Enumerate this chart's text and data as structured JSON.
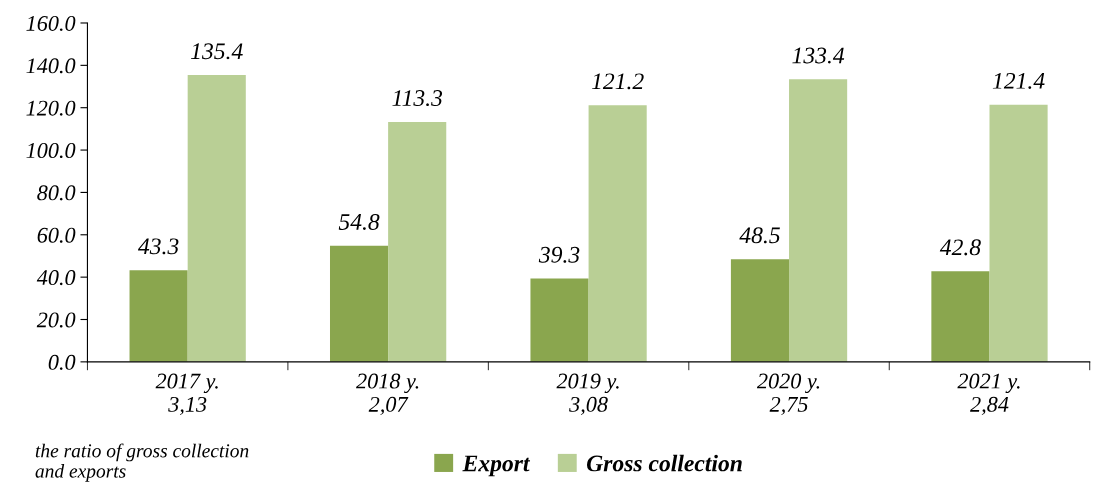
{
  "chart_data": {
    "type": "bar",
    "categories": [
      "2017 y.\n3,13",
      "2018 y.\n2,07",
      "2019 y.\n3,08",
      "2020 y.\n2,75",
      "2021 y.\n2,84"
    ],
    "series": [
      {
        "name": "Export",
        "color": "#8aa64e",
        "values": [
          43.3,
          54.8,
          39.3,
          48.5,
          42.8
        ]
      },
      {
        "name": "Gross collection",
        "color": "#b9cf95",
        "values": [
          135.4,
          113.3,
          121.2,
          133.4,
          121.4
        ]
      }
    ],
    "ylim": [
      0,
      160
    ],
    "yticks": [
      {
        "value": 0,
        "label": "0.0"
      },
      {
        "value": 20,
        "label": "20.0"
      },
      {
        "value": 40,
        "label": "40.0"
      },
      {
        "value": 60,
        "label": "60.0"
      },
      {
        "value": 80,
        "label": "80.0"
      },
      {
        "value": 100,
        "label": "100.0"
      },
      {
        "value": 120,
        "label": "120.0"
      },
      {
        "value": 140,
        "label": "140.0"
      },
      {
        "value": 160,
        "label": "160.0"
      }
    ],
    "data_labels": true,
    "grid": false,
    "legend": "bottom",
    "annotations": [
      "the ratio of gross collection\nand exports"
    ]
  }
}
